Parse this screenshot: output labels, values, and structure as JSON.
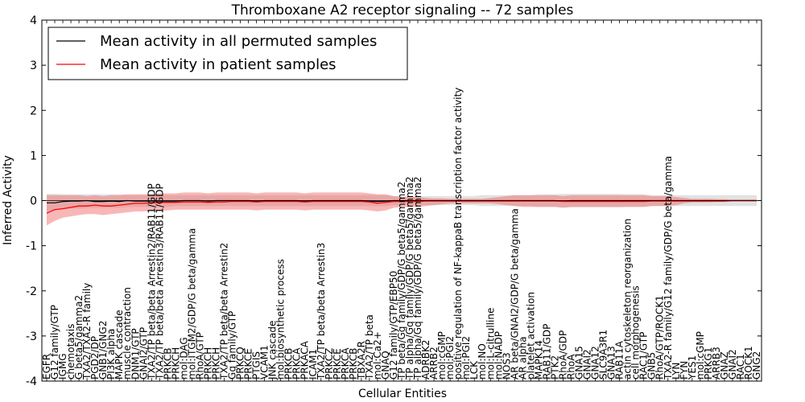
{
  "chart_data": {
    "type": "line",
    "title": "Thromboxane A2 receptor signaling -- 72 samples",
    "xlabel": "Cellular Entities",
    "ylabel": "Inferred Activity",
    "ylim": [
      -4,
      4
    ],
    "yticks": [
      -4,
      -3,
      -2,
      -1,
      0,
      1,
      2,
      3,
      4
    ],
    "legend_position": "upper-left",
    "categories": [
      "EGFR",
      "G12 family/GTP",
      "IGMG",
      "chemotaxis",
      "G beta5/gamma2",
      "TXA2/TXA2-R family",
      "PGD2/DP",
      "GNB1/GNG2",
      "PI3K alpha",
      "MAPK cascade",
      "muscle contraction",
      "DNM1/GTP",
      "GNAI2/GTP",
      "TXA2/TP beta/beta Arrestin2/RAB11/GDP",
      "TXA2/TP beta/beta Arrestin3/RAB11/GDP",
      "PRKCB",
      "PRKCH",
      "mol:DAG",
      "mol:ITGM2/GDP/G beta/gamma",
      "RhoA/GTP",
      "PRKCH",
      "PRKCH",
      "TXA2/TP beta/beta Arrestin2",
      "Gq family/GTP",
      "PRKCQ",
      "PRKCE",
      "PTGIS",
      "VCAM1",
      "JNK cascade",
      "mol:biosynthetic process",
      "PRKCB",
      "PRKCA",
      "PRKACA",
      "ICAM1",
      "TXA2/TP beta/beta Arrestin3",
      "PRKCZ",
      "PRKCE",
      "PRKCA",
      "PRKCB",
      "TBXA2R",
      "TXA2/TP beta",
      "mol:Ca2+",
      "GNAQ",
      "G12 family/GTP/EBP50",
      "TP beta/Gq family/GDP/G beta5/gamma2",
      "TP alpha/Gq family/GDP/G beta5/gamma2",
      "TP alpha/Gq family/GDP/G beta5/gamma2",
      "ADRBK2",
      "ARRB2",
      "mol:cGMP",
      "mol:PGI2",
      "positive regulation of NF-kappaB transcription factor activity",
      "mol:PGI2",
      "LCK",
      "mol:NO",
      "mol:L-citrulline",
      "mol:NADP",
      "NOS3",
      "AR beta/GNAI2/GDP/G beta/gamma",
      "AR alpha",
      "platelet activation",
      "MAPK14",
      "RAB11/GDP",
      "PTK2",
      "RhoA/GDP",
      "RhoA",
      "GNA15",
      "GNAI2",
      "GNA12",
      "SLC9A3R1",
      "GNA13",
      "RAB11A",
      "actin cytoskeleton reorganization",
      "cell morphogenesis",
      "RAC1/GTP",
      "GNB5",
      "RhoA/GTP/ROCK1",
      "TXA2-R family/G12 family/GDP/G beta/gamma",
      "LYN",
      "FYN",
      "YES1",
      "mol:cGMP",
      "PRKG1",
      "ARRB3",
      "GNAZ",
      "GNAI2",
      "RAC1",
      "ROCK1",
      "GNG2"
    ],
    "series": [
      {
        "name": "Mean activity in all permuted samples",
        "color": "#000000",
        "values": [
          -0.05,
          -0.05,
          -0.02,
          -0.01,
          -0.01,
          0.0,
          -0.02,
          -0.02,
          -0.01,
          -0.02,
          0.0,
          -0.01,
          -0.01,
          -0.01,
          -0.01,
          -0.01,
          -0.01,
          0.0,
          0.0,
          0.0,
          -0.01,
          0.0,
          0.0,
          0.0,
          0.0,
          0.0,
          -0.01,
          0.0,
          0.0,
          0.0,
          0.0,
          0.0,
          -0.01,
          0.0,
          0.0,
          0.0,
          0.0,
          0.0,
          0.0,
          0.0,
          -0.01,
          -0.02,
          -0.01,
          0.0,
          0.0,
          0.0,
          0.0,
          0.0,
          0.0,
          0.0,
          0.0,
          0.0,
          0.0,
          0.0,
          0.0,
          0.0,
          0.0,
          0.0,
          0.0,
          0.0,
          0.0,
          0.0,
          0.0,
          0.0,
          -0.01,
          0.0,
          0.0,
          0.0,
          0.0,
          0.0,
          0.0,
          0.0,
          0.0,
          0.0,
          0.0,
          0.0,
          0.0,
          0.0,
          0.0,
          0.0,
          0.0,
          0.0,
          0.0,
          0.0,
          0.0,
          0.0,
          0.0,
          0.0,
          0.0
        ],
        "band_low": [
          -0.25,
          -0.2,
          -0.18,
          -0.18,
          -0.18,
          -0.16,
          -0.16,
          -0.16,
          -0.16,
          -0.16,
          -0.14,
          -0.14,
          -0.14,
          -0.14,
          -0.14,
          -0.14,
          -0.12,
          -0.12,
          -0.12,
          -0.12,
          -0.12,
          -0.12,
          -0.12,
          -0.12,
          -0.12,
          -0.12,
          -0.12,
          -0.12,
          -0.12,
          -0.12,
          -0.12,
          -0.12,
          -0.12,
          -0.12,
          -0.12,
          -0.12,
          -0.12,
          -0.12,
          -0.12,
          -0.12,
          -0.12,
          -0.12,
          -0.12,
          -0.1,
          -0.1,
          -0.1,
          -0.1,
          -0.1,
          -0.1,
          -0.1,
          -0.1,
          -0.1,
          -0.1,
          -0.1,
          -0.12,
          -0.12,
          -0.12,
          -0.12,
          -0.12,
          -0.12,
          -0.12,
          -0.14,
          -0.14,
          -0.14,
          -0.15,
          -0.15,
          -0.15,
          -0.15,
          -0.15,
          -0.15,
          -0.15,
          -0.15,
          -0.14,
          -0.14,
          -0.14,
          -0.12,
          -0.12,
          -0.12,
          -0.12,
          -0.12,
          -0.12,
          -0.12,
          -0.12,
          -0.12,
          -0.12,
          -0.12,
          -0.12,
          -0.12,
          -0.12
        ],
        "band_high": [
          0.15,
          0.15,
          0.14,
          0.14,
          0.14,
          0.14,
          0.14,
          0.14,
          0.14,
          0.14,
          0.12,
          0.12,
          0.12,
          0.12,
          0.12,
          0.12,
          0.12,
          0.12,
          0.12,
          0.12,
          0.12,
          0.12,
          0.12,
          0.12,
          0.12,
          0.12,
          0.12,
          0.12,
          0.12,
          0.12,
          0.12,
          0.12,
          0.12,
          0.12,
          0.12,
          0.12,
          0.12,
          0.12,
          0.12,
          0.12,
          0.12,
          0.12,
          0.12,
          0.1,
          0.1,
          0.1,
          0.1,
          0.1,
          0.1,
          0.1,
          0.1,
          0.1,
          0.1,
          0.1,
          0.12,
          0.12,
          0.12,
          0.12,
          0.12,
          0.12,
          0.12,
          0.14,
          0.14,
          0.14,
          0.15,
          0.15,
          0.15,
          0.15,
          0.15,
          0.15,
          0.15,
          0.15,
          0.14,
          0.14,
          0.14,
          0.12,
          0.12,
          0.12,
          0.12,
          0.12,
          0.12,
          0.12,
          0.12,
          0.12,
          0.12,
          0.12,
          0.12,
          0.12,
          0.12
        ]
      },
      {
        "name": "Mean activity in patient samples",
        "color": "#ff0000",
        "values": [
          -0.28,
          -0.2,
          -0.18,
          -0.15,
          -0.12,
          -0.12,
          -0.1,
          -0.12,
          -0.12,
          -0.1,
          -0.08,
          -0.06,
          -0.06,
          -0.05,
          -0.04,
          -0.04,
          -0.04,
          -0.03,
          -0.03,
          -0.03,
          -0.04,
          -0.03,
          -0.03,
          -0.02,
          -0.02,
          -0.02,
          -0.03,
          -0.02,
          -0.02,
          -0.02,
          -0.02,
          -0.02,
          -0.03,
          -0.02,
          -0.02,
          -0.02,
          -0.02,
          -0.02,
          -0.02,
          -0.02,
          -0.03,
          -0.06,
          -0.04,
          -0.02,
          -0.02,
          -0.02,
          -0.02,
          -0.01,
          -0.01,
          -0.01,
          -0.01,
          -0.01,
          -0.01,
          -0.01,
          -0.01,
          -0.01,
          -0.01,
          -0.01,
          -0.01,
          -0.01,
          -0.01,
          -0.01,
          -0.01,
          -0.01,
          -0.02,
          -0.02,
          -0.02,
          -0.02,
          -0.02,
          -0.02,
          -0.02,
          -0.02,
          -0.02,
          -0.02,
          -0.02,
          -0.01,
          -0.01,
          -0.01,
          -0.01,
          -0.01,
          -0.01,
          -0.01,
          -0.01,
          -0.01,
          -0.01,
          0.0,
          0.0,
          0.0,
          0.0
        ],
        "band_low": [
          -0.55,
          -0.45,
          -0.38,
          -0.35,
          -0.32,
          -0.3,
          -0.3,
          -0.32,
          -0.3,
          -0.28,
          -0.26,
          -0.24,
          -0.24,
          -0.22,
          -0.22,
          -0.22,
          -0.2,
          -0.2,
          -0.2,
          -0.2,
          -0.2,
          -0.2,
          -0.2,
          -0.2,
          -0.2,
          -0.2,
          -0.22,
          -0.2,
          -0.2,
          -0.2,
          -0.2,
          -0.2,
          -0.22,
          -0.2,
          -0.2,
          -0.2,
          -0.2,
          -0.2,
          -0.2,
          -0.2,
          -0.22,
          -0.24,
          -0.22,
          -0.16,
          -0.14,
          -0.14,
          -0.14,
          -0.12,
          -0.1,
          -0.08,
          -0.06,
          -0.06,
          -0.06,
          -0.06,
          -0.06,
          -0.06,
          -0.08,
          -0.1,
          -0.12,
          -0.14,
          -0.14,
          -0.14,
          -0.14,
          -0.14,
          -0.16,
          -0.14,
          -0.14,
          -0.14,
          -0.14,
          -0.14,
          -0.14,
          -0.14,
          -0.14,
          -0.14,
          -0.14,
          -0.12,
          -0.12,
          -0.12,
          -0.1,
          -0.06,
          -0.04,
          -0.04,
          -0.04,
          -0.03,
          -0.03,
          -0.02,
          -0.02,
          -0.02,
          -0.02
        ],
        "band_high": [
          0.12,
          0.12,
          0.12,
          0.12,
          0.12,
          0.1,
          0.12,
          0.1,
          0.12,
          0.12,
          0.14,
          0.14,
          0.14,
          0.14,
          0.16,
          0.16,
          0.16,
          0.18,
          0.18,
          0.18,
          0.16,
          0.18,
          0.18,
          0.18,
          0.18,
          0.18,
          0.16,
          0.18,
          0.18,
          0.18,
          0.18,
          0.18,
          0.16,
          0.18,
          0.18,
          0.18,
          0.18,
          0.18,
          0.18,
          0.18,
          0.16,
          0.14,
          0.14,
          0.1,
          0.08,
          0.08,
          0.08,
          0.06,
          0.05,
          0.05,
          0.04,
          0.04,
          0.04,
          0.04,
          0.04,
          0.06,
          0.08,
          0.1,
          0.12,
          0.12,
          0.12,
          0.12,
          0.12,
          0.12,
          0.1,
          0.12,
          0.12,
          0.12,
          0.12,
          0.12,
          0.12,
          0.12,
          0.12,
          0.12,
          0.12,
          0.1,
          0.1,
          0.1,
          0.08,
          0.06,
          0.04,
          0.04,
          0.04,
          0.03,
          0.03,
          0.02,
          0.02,
          0.02,
          0.02
        ]
      }
    ]
  }
}
